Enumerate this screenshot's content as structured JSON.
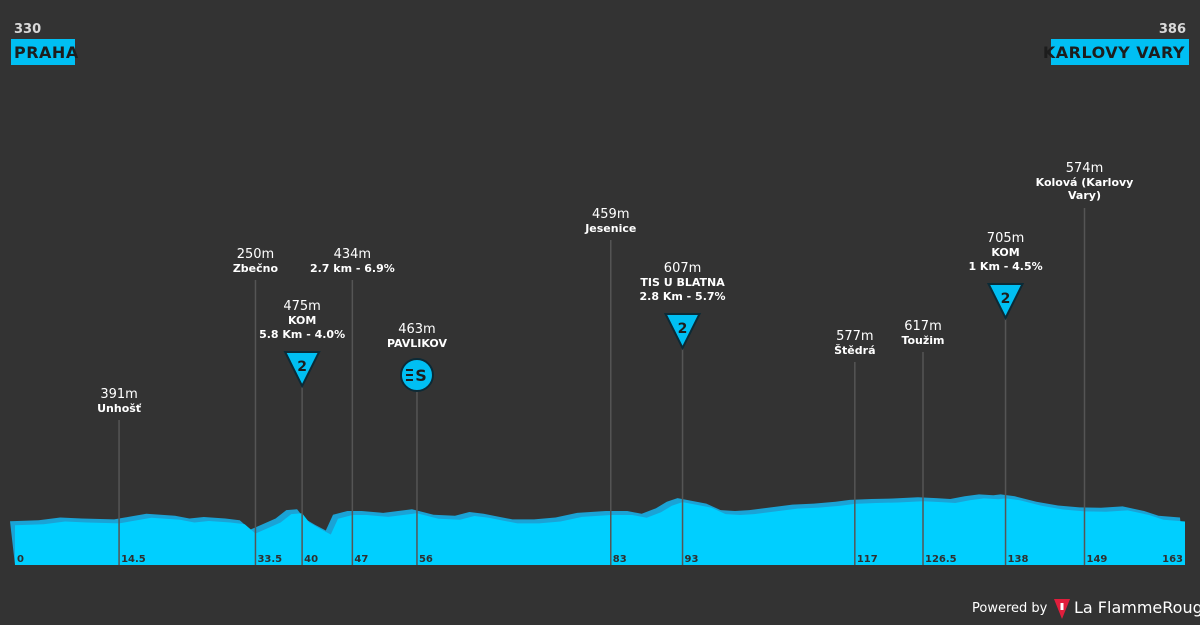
{
  "start": {
    "alt": "330",
    "name": "PRAHA"
  },
  "finish": {
    "alt": "386",
    "name": "KARLOVY VARY"
  },
  "chart_data": {
    "type": "area",
    "title": "",
    "xlabel": "",
    "ylabel": "",
    "xlim": [
      0,
      163
    ],
    "profile": {
      "x": [
        0,
        4,
        7,
        10,
        14.5,
        16,
        19,
        21,
        23,
        25,
        27,
        30,
        32,
        33.5,
        35,
        37,
        38.5,
        40,
        41,
        42.5,
        44,
        45,
        47,
        49,
        52,
        56,
        59,
        62,
        64,
        66,
        68,
        70,
        73,
        76,
        79,
        83,
        86,
        88,
        90,
        91.5,
        93,
        95,
        97,
        99,
        101,
        103,
        106,
        109,
        112,
        115,
        117,
        120,
        123,
        126.5,
        129,
        131,
        133,
        135,
        137,
        138,
        140,
        143,
        146,
        149,
        152,
        155,
        158,
        160,
        163
      ],
      "y": [
        365,
        370,
        385,
        380,
        375,
        385,
        405,
        400,
        395,
        380,
        388,
        380,
        370,
        320,
        345,
        380,
        425,
        430,
        380,
        345,
        315,
        400,
        420,
        420,
        410,
        430,
        400,
        395,
        415,
        405,
        390,
        375,
        375,
        385,
        410,
        420,
        420,
        405,
        435,
        470,
        490,
        475,
        460,
        425,
        420,
        425,
        440,
        455,
        460,
        470,
        480,
        485,
        488,
        495,
        490,
        485,
        500,
        510,
        505,
        510,
        500,
        470,
        450,
        440,
        438,
        445,
        420,
        395,
        385
      ]
    },
    "waypoints": [
      {
        "km": "14.5",
        "name": "Unhošť",
        "alt": "391m"
      },
      {
        "km": "33.5",
        "name": "Zbečno",
        "alt": "250m"
      },
      {
        "km": "40",
        "name": "KOM",
        "alt": "475m",
        "climb": "5.8 Km - 4.0%",
        "badge": "kom",
        "category": "2"
      },
      {
        "km": "47",
        "name": "",
        "alt": "434m",
        "climb": "2.7 km - 6.9%"
      },
      {
        "km": "56",
        "name": "PAVLIKOV",
        "alt": "463m",
        "badge": "sprint",
        "badge_label": "S"
      },
      {
        "km": "83",
        "name": "Jesenice",
        "alt": "459m"
      },
      {
        "km": "93",
        "name": "TIS U BLATNA",
        "alt": "607m",
        "climb": "2.8 Km - 5.7%",
        "badge": "kom",
        "category": "2"
      },
      {
        "km": "117",
        "name": "Štědrá",
        "alt": "577m"
      },
      {
        "km": "126.5",
        "name": "Toužim",
        "alt": "617m"
      },
      {
        "km": "138",
        "name": "KOM",
        "alt": "705m",
        "climb": "1 Km - 4.5%",
        "badge": "kom",
        "category": "2"
      },
      {
        "km": "149",
        "name": "Kolová (Karlovy Vary)",
        "alt": "574m"
      }
    ],
    "km_ticks": [
      "0",
      "14.5",
      "33.5",
      "40",
      "47",
      "56",
      "83",
      "93",
      "117",
      "126.5",
      "138",
      "149",
      "163"
    ]
  },
  "footer": {
    "powered_by": "Powered by",
    "brand": "La FlammeRouge"
  },
  "colors": {
    "background": "#333333",
    "profile_fill": "#00cfff",
    "profile_shadow": "#1aa3d6",
    "badge": "#00bff3"
  }
}
